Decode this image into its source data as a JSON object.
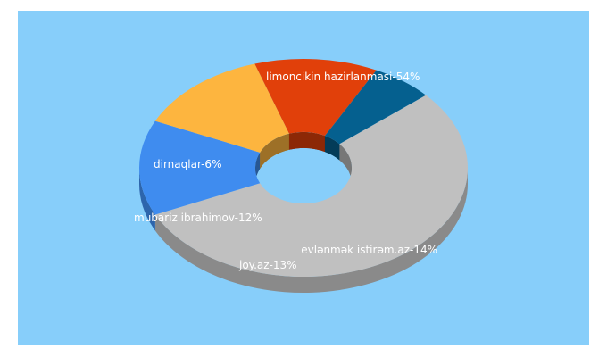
{
  "chart_data": {
    "type": "pie",
    "donut": true,
    "three_d": true,
    "background_color": "#87cefa",
    "label_color": "#ffffff",
    "slices": [
      {
        "label": "limoncikin hazirlanmasi-54%",
        "name": "limoncikin hazirlanmasi",
        "value": 54,
        "color": "#c0c0c0"
      },
      {
        "label": "evlənmək istirəm.az-14%",
        "name": "evlənmək istirəm.az",
        "value": 14,
        "color": "#3f8cef"
      },
      {
        "label": "joy.az-13%",
        "name": "joy.az",
        "value": 13,
        "color": "#fdb53f"
      },
      {
        "label": "mubariz ibrahimov-12%",
        "name": "mubariz ibrahimov",
        "value": 12,
        "color": "#e1400a"
      },
      {
        "label": "dirnaqlar-6%",
        "name": "dirnaqlar",
        "value": 6,
        "color": "#05608f"
      }
    ]
  }
}
